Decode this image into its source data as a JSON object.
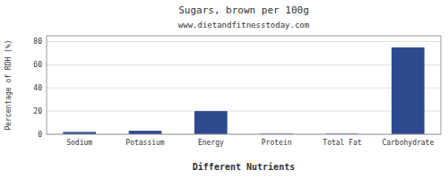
{
  "chart_data": {
    "type": "bar",
    "title": "Sugars, brown per 100g",
    "subtitle": "www.dietandfitnesstoday.com",
    "xlabel": "Different Nutrients",
    "ylabel": "Percentage of RDH (%)",
    "categories": [
      "Sodium",
      "Potassium",
      "Energy",
      "Protein",
      "Total Fat",
      "Carbohydrate"
    ],
    "values": [
      2.0,
      3.0,
      20.0,
      0.5,
      0.5,
      75.0
    ],
    "color": "#2e4a8e",
    "ylim": [
      0,
      85
    ],
    "yticks": [
      0,
      20,
      40,
      60,
      80
    ],
    "grid": true
  }
}
